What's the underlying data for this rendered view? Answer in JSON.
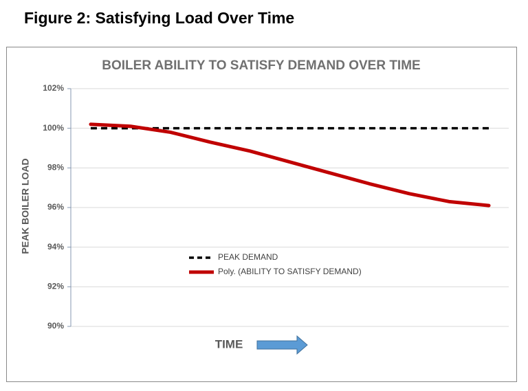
{
  "figure_caption": "Figure 2: Satisfying Load Over Time",
  "chart_data": {
    "type": "line",
    "title": "BOILER ABILITY TO SATISFY DEMAND OVER TIME",
    "y_label": "PEAK BOILER LOAD",
    "x_label": "TIME",
    "x": [
      0,
      1,
      2,
      3,
      4,
      5,
      6,
      7,
      8,
      9,
      10
    ],
    "xlim": [
      -0.5,
      10.5
    ],
    "ylim": [
      90,
      102
    ],
    "yticks": [
      {
        "value": 90,
        "label": "90%"
      },
      {
        "value": 92,
        "label": "92%"
      },
      {
        "value": 94,
        "label": "94%"
      },
      {
        "value": 96,
        "label": "96%"
      },
      {
        "value": 98,
        "label": "98%"
      },
      {
        "value": 100,
        "label": "100%"
      },
      {
        "value": 102,
        "label": "102%"
      }
    ],
    "grid": true,
    "legend": "center",
    "series": [
      {
        "name": "PEAK DEMAND",
        "color": "#000000",
        "dashed": true,
        "values": [
          100,
          100,
          100,
          100,
          100,
          100,
          100,
          100,
          100,
          100,
          100
        ]
      },
      {
        "name": "Poly. (ABILITY TO SATISFY DEMAND)",
        "color": "#c00000",
        "dashed": false,
        "values": [
          100.2,
          100.1,
          99.8,
          99.3,
          98.85,
          98.3,
          97.75,
          97.2,
          96.7,
          96.3,
          96.1
        ]
      }
    ]
  }
}
